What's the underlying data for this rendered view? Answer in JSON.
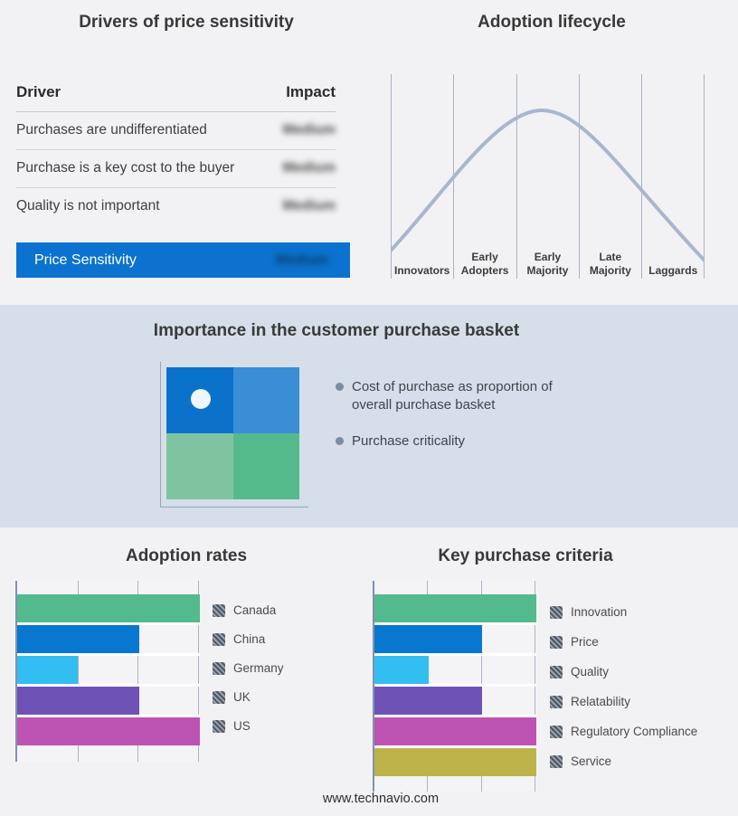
{
  "sections": {
    "drivers": {
      "title": "Drivers of price sensitivity",
      "table": {
        "headers": {
          "driver": "Driver",
          "impact": "Impact"
        },
        "rows": [
          {
            "driver": "Purchases are undifferentiated",
            "impact": "Medium"
          },
          {
            "driver": "Purchase is a key cost to the buyer",
            "impact": "Medium"
          },
          {
            "driver": "Quality is not important",
            "impact": "Medium"
          }
        ],
        "highlight_row": {
          "driver": "Price Sensitivity",
          "impact": "Medium"
        },
        "impact_values_obscured": true
      }
    },
    "basket": {
      "title": "Importance in the customer purchase basket",
      "bullets": [
        "Cost of purchase as proportion of overall purchase basket",
        "Purchase criticality"
      ]
    }
  },
  "footer": "www.technavio.com",
  "colors": {
    "page_bg": "#f2f2f4",
    "band_bg": "#d5dee9",
    "accent_blue": "#0b73cf",
    "curve": "#a9b6cc",
    "gridline": "#a8b2c6",
    "quadrant": [
      "#0b72cc",
      "#3a8ed6",
      "#7fc4a0",
      "#55ba8b"
    ],
    "quadrant_marker": "#eef6fc"
  },
  "chart_data": [
    {
      "type": "line",
      "subtype": "bell_curve",
      "title": "Adoption lifecycle",
      "categories": [
        "Innovators",
        "Early Adopters",
        "Early Majority",
        "Late Majority",
        "Laggards"
      ],
      "points_norm": [
        [
          0.0,
          0.14
        ],
        [
          0.2,
          0.5
        ],
        [
          0.4,
          0.93
        ],
        [
          0.48,
          1.0
        ],
        [
          0.6,
          0.87
        ],
        [
          0.8,
          0.44
        ],
        [
          1.0,
          0.09
        ]
      ],
      "peak_at": "Early Majority",
      "axis_labels_shown": false,
      "gridlines": "vertical stage separators"
    },
    {
      "type": "bar",
      "orientation": "horizontal",
      "title": "Adoption rates",
      "categories": [
        "Canada",
        "China",
        "Germany",
        "UK",
        "US"
      ],
      "values": [
        3,
        2,
        1,
        2,
        3
      ],
      "xlim": [
        0,
        3
      ],
      "x_ticks_labeled": false,
      "legend_position": "right",
      "legend_swatch_style": "hatched",
      "colors": [
        "#52ba8c",
        "#0877cf",
        "#33bef2",
        "#6f52b5",
        "#bd54b4"
      ]
    },
    {
      "type": "bar",
      "orientation": "horizontal",
      "title": "Key purchase criteria",
      "categories": [
        "Innovation",
        "Price",
        "Quality",
        "Relatability",
        "Regulatory Compliance",
        "Service"
      ],
      "values": [
        3,
        2,
        1,
        2,
        3,
        3
      ],
      "xlim": [
        0,
        3
      ],
      "x_ticks_labeled": false,
      "legend_position": "right",
      "legend_swatch_style": "hatched",
      "colors": [
        "#52ba8c",
        "#0877cf",
        "#33bef2",
        "#6f52b5",
        "#bd54b4",
        "#bcb44a"
      ]
    }
  ]
}
